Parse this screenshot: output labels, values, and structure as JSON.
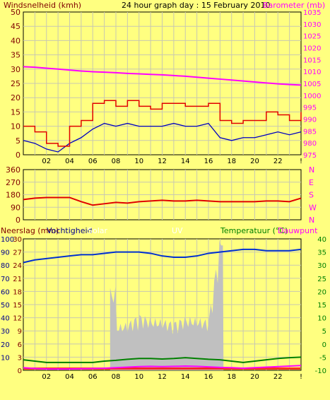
{
  "header": {
    "title": "24 hour graph day : 15 February 2010",
    "left_label": "Windsnelheid (kmh)",
    "right_label": "Barometer (mb)"
  },
  "colors": {
    "background": "#ffff80",
    "plot_background": "#ffff80",
    "grid": "#c8c8b0",
    "wind": "#e00000",
    "wind_avg": "#0000c0",
    "barometer": "#ff00ff",
    "direction": "#e00000",
    "humidity": "#0030d0",
    "solar": "#c0c0c0",
    "temperature": "#008000",
    "dewpoint": "#ff00ff",
    "rain": "#ff0000",
    "uv": "#cccccc",
    "green_axis": "#008000",
    "navy_axis": "#00008b",
    "maroon": "#800000"
  },
  "x_ticks": [
    "02",
    "04",
    "06",
    "08",
    "10",
    "12",
    "14",
    "16",
    "18",
    "20",
    "22",
    "!"
  ],
  "chart_data": [
    {
      "type": "line",
      "title": "24 hour graph day : 15 February 2010",
      "ylabel": "Windsnelheid (kmh)",
      "y2label": "Barometer (mb)",
      "ylim": [
        0,
        50
      ],
      "y2lim": [
        975,
        1035
      ],
      "y_ticks": [
        "0",
        "5",
        "10",
        "15",
        "20",
        "25",
        "30",
        "35",
        "40",
        "45",
        "50"
      ],
      "y2_ticks": [
        "975",
        "980",
        "985",
        "990",
        "995",
        "1000",
        "1005",
        "1010",
        "1015",
        "1020",
        "1025",
        "1030",
        "1035"
      ],
      "x": [
        0,
        1,
        2,
        3,
        4,
        5,
        6,
        7,
        8,
        9,
        10,
        11,
        12,
        13,
        14,
        15,
        16,
        17,
        18,
        19,
        20,
        21,
        22,
        23,
        24
      ],
      "series": [
        {
          "name": "Windsnelheid (kmh)",
          "values": [
            10,
            8,
            4,
            3,
            10,
            12,
            18,
            19,
            17,
            19,
            17,
            16,
            18,
            18,
            17,
            17,
            18,
            12,
            11,
            12,
            12,
            15,
            14,
            12,
            15
          ]
        },
        {
          "name": "wind_avg",
          "values": [
            5,
            4,
            2,
            1,
            4,
            6,
            9,
            11,
            10,
            11,
            10,
            10,
            10,
            11,
            10,
            10,
            11,
            6,
            5,
            6,
            6,
            7,
            8,
            7,
            8
          ]
        },
        {
          "name": "Barometer (mb)",
          "values": [
            1012,
            1011.8,
            1011.4,
            1011,
            1010.6,
            1010.2,
            1009.9,
            1009.7,
            1009.5,
            1009.2,
            1009,
            1008.8,
            1008.6,
            1008.3,
            1008,
            1007.6,
            1007.2,
            1006.8,
            1006.4,
            1006,
            1005.6,
            1005.2,
            1004.8,
            1004.5,
            1004.3
          ]
        }
      ]
    },
    {
      "type": "line",
      "y_ticks": [
        "0",
        "90",
        "180",
        "270",
        "360"
      ],
      "y2_ticks": [
        "N",
        "W",
        "S",
        "E",
        "N"
      ],
      "ylim": [
        0,
        360
      ],
      "x": [
        0,
        1,
        2,
        3,
        4,
        5,
        6,
        7,
        8,
        9,
        10,
        11,
        12,
        13,
        14,
        15,
        16,
        17,
        18,
        19,
        20,
        21,
        22,
        23,
        24
      ],
      "series": [
        {
          "name": "direction",
          "values": [
            145,
            155,
            160,
            160,
            160,
            130,
            105,
            115,
            125,
            120,
            130,
            135,
            140,
            135,
            135,
            140,
            135,
            130,
            130,
            130,
            130,
            135,
            135,
            130,
            155
          ]
        }
      ]
    },
    {
      "type": "line",
      "left_label": "Neerslag (mm)",
      "humidity_label": "Vochtigheid",
      "solar_label": "Solar",
      "uv_label": "UV",
      "right_label": "Temperatuur (°C)",
      "dewpoint_label": "Dauwpunt",
      "ylim": [
        0,
        100
      ],
      "y2lim": [
        -10,
        40
      ],
      "rain_ticks": [
        "0",
        "3",
        "6",
        "9",
        "12",
        "15",
        "18",
        "21",
        "24",
        "27",
        "30"
      ],
      "humidity_ticks": [
        "10",
        "20",
        "30",
        "40",
        "50",
        "60",
        "70",
        "80",
        "90",
        "100"
      ],
      "temp_ticks": [
        "-10",
        "-5",
        "0",
        "5",
        "10",
        "15",
        "20",
        "25",
        "30",
        "35",
        "40"
      ],
      "x": [
        0,
        1,
        2,
        3,
        4,
        5,
        6,
        7,
        8,
        9,
        10,
        11,
        12,
        13,
        14,
        15,
        16,
        17,
        18,
        19,
        20,
        21,
        22,
        23,
        24
      ],
      "series": [
        {
          "name": "Vochtigheid",
          "values": [
            82,
            84,
            85,
            86,
            87,
            88,
            88,
            89,
            90,
            90,
            90,
            89,
            87,
            86,
            86,
            87,
            89,
            90,
            91,
            92,
            92,
            91,
            91,
            91,
            92
          ]
        },
        {
          "name": "Solar",
          "values": [
            0,
            0,
            0,
            0,
            0,
            0,
            0,
            0,
            30,
            32,
            38,
            35,
            34,
            33,
            36,
            35,
            34,
            90,
            0,
            0,
            0,
            0,
            0,
            0,
            0
          ]
        },
        {
          "name": "Temperatuur (°C)",
          "values": [
            -6,
            -6.5,
            -7,
            -7,
            -7,
            -7,
            -7,
            -6.5,
            -6.2,
            -5.8,
            -5.5,
            -5.5,
            -5.7,
            -5.5,
            -5.2,
            -5.5,
            -5.8,
            -6,
            -6.5,
            -7,
            -6.5,
            -6,
            -5.5,
            -5.2,
            -5
          ]
        },
        {
          "name": "Dauwpunt",
          "values": [
            -9,
            -9.3,
            -9.5,
            -9.5,
            -9.5,
            -9.4,
            -9.3,
            -9.2,
            -9,
            -8.8,
            -8.6,
            -8.5,
            -8.6,
            -8.5,
            -8.4,
            -8.5,
            -8.7,
            -8.9,
            -9,
            -9.2,
            -9,
            -8.8,
            -8.6,
            -8.4,
            -8.2
          ]
        }
      ]
    }
  ]
}
